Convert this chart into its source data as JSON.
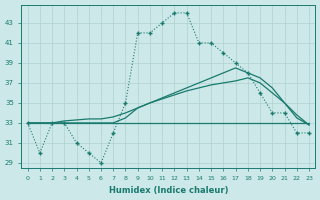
{
  "xlabel": "Humidex (Indice chaleur)",
  "background_color": "#cce8e8",
  "grid_color": "#b0d0d0",
  "line_color": "#1a7a6e",
  "x_main": [
    0,
    1,
    2,
    3,
    4,
    5,
    6,
    7,
    8,
    9,
    10,
    11,
    12,
    13,
    14,
    15,
    16,
    17,
    18,
    19,
    20,
    21,
    22,
    23
  ],
  "y_main": [
    33,
    30,
    33,
    33,
    31,
    30,
    29,
    32,
    35,
    42,
    42,
    43,
    44,
    44,
    41,
    41,
    40,
    39,
    38,
    36,
    34,
    34,
    32,
    32
  ],
  "x_s1": [
    0,
    1,
    2,
    3,
    4,
    5,
    6,
    7,
    8,
    9,
    10,
    11,
    12,
    13,
    14,
    15,
    16,
    17,
    18,
    19,
    20,
    21,
    22,
    23
  ],
  "y_s1": [
    33,
    33,
    33,
    33,
    33,
    33,
    33,
    33,
    33.5,
    34.5,
    35,
    35.5,
    36,
    36.5,
    37,
    37.5,
    38,
    38.5,
    38,
    37.5,
    36.5,
    35,
    33.5,
    32.8
  ],
  "x_s2": [
    0,
    1,
    2,
    3,
    4,
    5,
    6,
    7,
    8,
    9,
    10,
    11,
    12,
    13,
    14,
    15,
    16,
    17,
    18,
    19,
    20,
    21,
    22,
    23
  ],
  "y_s2": [
    33,
    33,
    33,
    33.2,
    33.3,
    33.4,
    33.4,
    33.6,
    34,
    34.5,
    35,
    35.4,
    35.8,
    36.2,
    36.5,
    36.8,
    37,
    37.2,
    37.5,
    37,
    36,
    35,
    33.8,
    32.8
  ],
  "x_s3": [
    0,
    1,
    2,
    3,
    4,
    5,
    6,
    7,
    8,
    9,
    10,
    11,
    12,
    13,
    14,
    15,
    16,
    17,
    18,
    19,
    20,
    21,
    22,
    23
  ],
  "y_s3": [
    33,
    33,
    33,
    33,
    33,
    33,
    33,
    33,
    33,
    33,
    33,
    33,
    33,
    33,
    33,
    33,
    33,
    33,
    33,
    33,
    33,
    33,
    33,
    33
  ],
  "ylim": [
    28.5,
    44.8
  ],
  "xlim": [
    -0.5,
    23.5
  ],
  "yticks": [
    29,
    31,
    33,
    35,
    37,
    39,
    41,
    43
  ]
}
